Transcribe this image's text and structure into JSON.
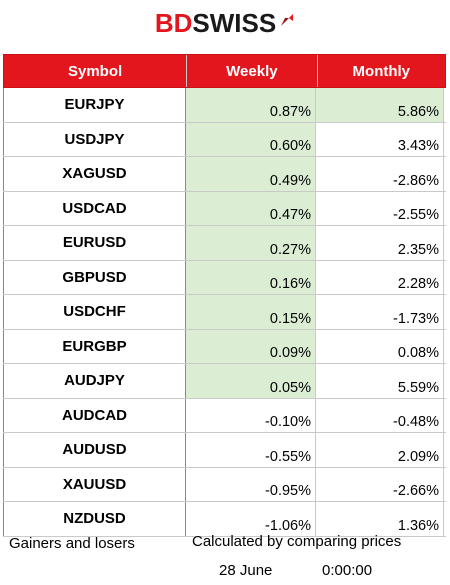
{
  "brand": {
    "part1": "BD",
    "part2": "SWISS",
    "accent": "#e3161d"
  },
  "headers": {
    "symbol": "Symbol",
    "weekly": "Weekly",
    "monthly": "Monthly"
  },
  "rows": [
    {
      "symbol": "EURJPY",
      "weekly": "0.87%",
      "monthly": "5.86%",
      "weekly_positive": true,
      "monthly_highlight": true
    },
    {
      "symbol": "USDJPY",
      "weekly": "0.60%",
      "monthly": "3.43%",
      "weekly_positive": true,
      "monthly_highlight": false
    },
    {
      "symbol": "XAGUSD",
      "weekly": "0.49%",
      "monthly": "-2.86%",
      "weekly_positive": true,
      "monthly_highlight": false
    },
    {
      "symbol": "USDCAD",
      "weekly": "0.47%",
      "monthly": "-2.55%",
      "weekly_positive": true,
      "monthly_highlight": false
    },
    {
      "symbol": "EURUSD",
      "weekly": "0.27%",
      "monthly": "2.35%",
      "weekly_positive": true,
      "monthly_highlight": false
    },
    {
      "symbol": "GBPUSD",
      "weekly": "0.16%",
      "monthly": "2.28%",
      "weekly_positive": true,
      "monthly_highlight": false
    },
    {
      "symbol": "USDCHF",
      "weekly": "0.15%",
      "monthly": "-1.73%",
      "weekly_positive": true,
      "monthly_highlight": false
    },
    {
      "symbol": "EURGBP",
      "weekly": "0.09%",
      "monthly": "0.08%",
      "weekly_positive": true,
      "monthly_highlight": false
    },
    {
      "symbol": "AUDJPY",
      "weekly": "0.05%",
      "monthly": "5.59%",
      "weekly_positive": true,
      "monthly_highlight": false
    },
    {
      "symbol": "AUDCAD",
      "weekly": "-0.10%",
      "monthly": "-0.48%",
      "weekly_positive": false,
      "monthly_highlight": false
    },
    {
      "symbol": "AUDUSD",
      "weekly": "-0.55%",
      "monthly": "2.09%",
      "weekly_positive": false,
      "monthly_highlight": false
    },
    {
      "symbol": "XAUUSD",
      "weekly": "-0.95%",
      "monthly": "-2.66%",
      "weekly_positive": false,
      "monthly_highlight": false
    },
    {
      "symbol": "NZDUSD",
      "weekly": "-1.06%",
      "monthly": "1.36%",
      "weekly_positive": false,
      "monthly_highlight": false
    }
  ],
  "footer": {
    "left": "Gainers and losers",
    "right": "Calculated by comparing prices",
    "date": "28 June",
    "time": "0:00:00"
  }
}
